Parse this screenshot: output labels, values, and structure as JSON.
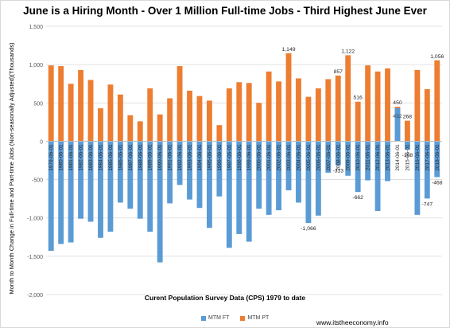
{
  "chart_data": {
    "type": "bar",
    "title": "June is a Hiring Month - Over 1 Million Full-time Jobs - Third Highest June Ever",
    "xlabel": "Curent Population Survey Data (CPS) 1979 to date",
    "ylabel": "Month to Month Change in Full-time and Part-time Jobs (Non-seasonally Adjusted)(Thousands)",
    "ylim": [
      -2000,
      1500
    ],
    "yticks": [
      -2000,
      -1500,
      -1000,
      -500,
      0,
      500,
      1000,
      1500
    ],
    "ytick_labels": [
      "-2,000",
      "-1,500",
      "-1,000",
      "-500",
      "0",
      "500",
      "1,000",
      "1,500"
    ],
    "grid": true,
    "legend_position": "bottom",
    "categories": [
      "1979-06-01",
      "1980-06-01",
      "1981-06-01",
      "1982-06-01",
      "1983-06-01",
      "1984-06-01",
      "1985-06-01",
      "1986-06-01",
      "1987-06-01",
      "1988-06-01",
      "1989-06-01",
      "1990-06-01",
      "1991-06-01",
      "1992-06-01",
      "1993-06-01",
      "1994-06-01",
      "1995-06-01",
      "1996-06-01",
      "1997-06-01",
      "1998-06-01",
      "1999-06-01",
      "2000-06-01",
      "2001-06-01",
      "2002-06-01",
      "2003-06-01",
      "2004-06-01",
      "2005-06-01",
      "2006-06-01",
      "2007-06-01",
      "2008-06-01",
      "2009-06-01",
      "2010-06-01",
      "2011-06-01",
      "2012-06-01",
      "2013-06-01",
      "2014-06-01",
      "2015-06-01",
      "2016-06-01",
      "2017-06-01",
      "2018-06-01"
    ],
    "tick_labels": [
      "1979-06-01",
      "1980-06-01",
      "1981-06-01",
      "1982-06-01",
      "1983-06-01",
      "1984-06-01",
      "1985-06-01",
      "1986-06-01",
      "1987-06-01",
      "1988-06-01",
      "1989-06-01",
      "1990-06-01",
      "1991-06-01",
      "1992-06-01",
      "1993-06-01",
      "1994-06-01",
      "1995-06-01",
      "1996-06-01",
      "1997-06-01",
      "1998-06-01",
      "1999-06-01",
      "2000-06-01",
      "2001-06-01",
      "2002-06-01",
      "2003-06-01",
      "2004-06-01",
      "2005-06-01",
      "2006-06-01",
      "2007-06-01",
      "2008-06-01",
      "2009-06-01",
      "2010-06-01",
      "2011-06-01",
      "2012-06-01",
      "2013-06-01",
      "2014-06-01",
      "2015-06-01",
      "2016-06-01",
      "2017-06-01",
      "2018-06-01"
    ],
    "series": [
      {
        "name": "MTM FT",
        "color": "#5b9bd5",
        "values": [
          -1430,
          -1340,
          -1320,
          -1010,
          -1050,
          -1260,
          -1180,
          -800,
          -880,
          -1010,
          -1180,
          -1580,
          -810,
          -570,
          -760,
          -870,
          -1130,
          -720,
          -1390,
          -1210,
          -1310,
          -880,
          -960,
          -900,
          -640,
          -800,
          -1066,
          -970,
          -410,
          -313,
          -450,
          -662,
          -510,
          -910,
          -520,
          432,
          -108,
          -960,
          -747,
          -468
        ]
      },
      {
        "name": "MTM PT",
        "color": "#ed7d31",
        "values": [
          990,
          980,
          750,
          930,
          800,
          430,
          740,
          610,
          340,
          260,
          690,
          350,
          560,
          980,
          660,
          590,
          530,
          210,
          690,
          770,
          760,
          500,
          910,
          780,
          1149,
          820,
          580,
          690,
          810,
          857,
          1122,
          516,
          990,
          910,
          950,
          450,
          268,
          930,
          680,
          1056
        ]
      }
    ],
    "annotations": [
      {
        "text": "1,149",
        "series": "MTM PT",
        "category": "2003-06-01",
        "value": 1149
      },
      {
        "text": "857",
        "series": "MTM PT",
        "category": "2008-06-01",
        "value": 857
      },
      {
        "text": "1,122",
        "series": "MTM PT",
        "category": "2009-06-01",
        "value": 1122
      },
      {
        "text": "516",
        "series": "MTM PT",
        "category": "2010-06-01",
        "value": 516
      },
      {
        "text": "450",
        "series": "MTM PT",
        "category": "2014-06-01",
        "value": 450
      },
      {
        "text": "268",
        "series": "MTM PT",
        "category": "2015-06-01",
        "value": 268
      },
      {
        "text": "1,056",
        "series": "MTM PT",
        "category": "2018-06-01",
        "value": 1056
      },
      {
        "text": "432",
        "series": "MTM FT",
        "category": "2014-06-01",
        "value": 432
      },
      {
        "text": "-1,066",
        "series": "MTM FT",
        "category": "2005-06-01",
        "value": -1066
      },
      {
        "text": "-313",
        "series": "MTM FT",
        "category": "2008-06-01",
        "value": -313
      },
      {
        "text": "-662",
        "series": "MTM FT",
        "category": "2010-06-01",
        "value": -662
      },
      {
        "text": "-108",
        "series": "MTM FT",
        "category": "2015-06-01",
        "value": -108
      },
      {
        "text": "-747",
        "series": "MTM FT",
        "category": "2017-06-01",
        "value": -747
      },
      {
        "text": "-468",
        "series": "MTM FT",
        "category": "2018-06-01",
        "value": -468
      }
    ]
  },
  "source": "www.itstheeconomy.info",
  "colors": {
    "ft": "#5b9bd5",
    "pt": "#ed7d31",
    "grid": "#d9d9d9"
  }
}
